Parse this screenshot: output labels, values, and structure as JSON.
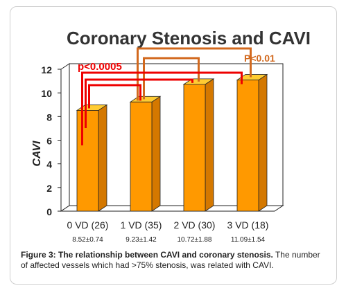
{
  "chart_data": {
    "type": "bar",
    "title": "Coronary Stenosis and CAVI",
    "ylabel": "CAVI",
    "xlabel": "",
    "ylim": [
      0,
      12
    ],
    "yticks": [
      0,
      2,
      4,
      6,
      8,
      10,
      12
    ],
    "categories": [
      "0 VD (26)",
      "1 VD (35)",
      "2 VD (30)",
      "3 VD (18)"
    ],
    "values": [
      8.52,
      9.23,
      10.72,
      11.09
    ],
    "value_labels": [
      "8.52±0.74",
      "9.23±1.42",
      "10.72±1.88",
      "11.09±1.54"
    ],
    "annotations": [
      {
        "text": "p<0.0005",
        "color": "#ee0000"
      },
      {
        "text": "P<0.01",
        "color": "#d2691e"
      }
    ],
    "colors": {
      "bar_front": "#ff9900",
      "bar_top": "#ffcc33",
      "bar_side": "#d47800",
      "title": "#333333",
      "red_bracket": "#ee0000",
      "orange_bracket": "#d2691e"
    }
  },
  "caption": {
    "label": "Figure 3: The relationship between CAVI and coronary stenosis.",
    "text": " The number of affected vessels which had >75% stenosis, was related with CAVI."
  }
}
